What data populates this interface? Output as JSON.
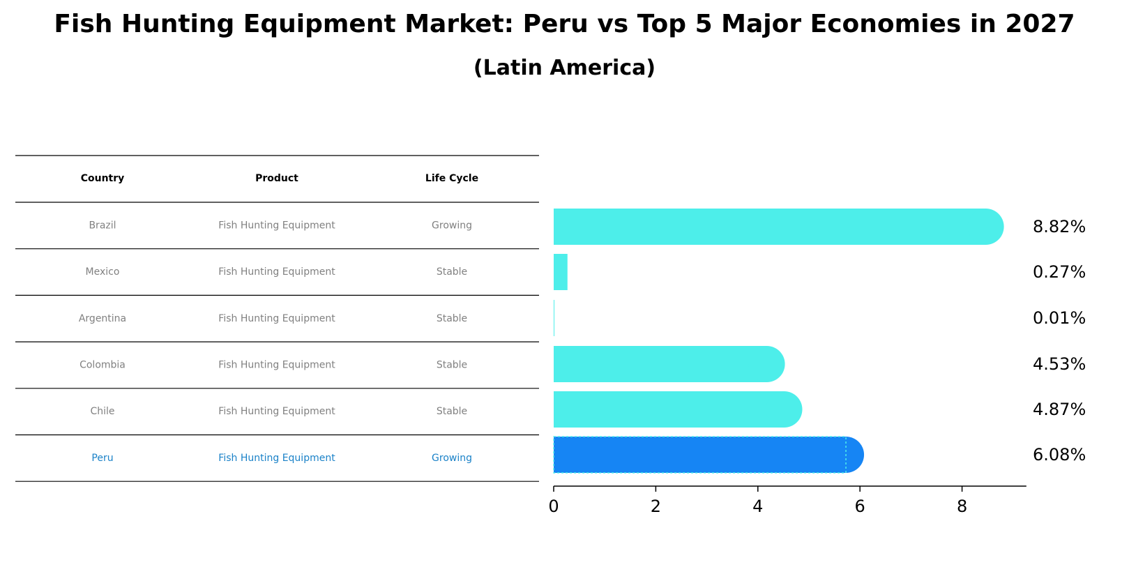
{
  "chart_data": {
    "type": "bar",
    "orientation": "horizontal",
    "title": "Fish Hunting Equipment Market: Peru vs Top 5 Major Economies in 2027",
    "subtitle": "(Latin America)",
    "table": {
      "headers": [
        "Country",
        "Product",
        "Life Cycle"
      ],
      "rows": [
        {
          "country": "Brazil",
          "product": "Fish Hunting Equipment",
          "life_cycle": "Growing",
          "highlight": false
        },
        {
          "country": "Mexico",
          "product": "Fish Hunting Equipment",
          "life_cycle": "Stable",
          "highlight": false
        },
        {
          "country": "Argentina",
          "product": "Fish Hunting Equipment",
          "life_cycle": "Stable",
          "highlight": false
        },
        {
          "country": "Colombia",
          "product": "Fish Hunting Equipment",
          "life_cycle": "Stable",
          "highlight": false
        },
        {
          "country": "Chile",
          "product": "Fish Hunting Equipment",
          "life_cycle": "Stable",
          "highlight": false
        },
        {
          "country": "Peru",
          "product": "Fish Hunting Equipment",
          "life_cycle": "Growing",
          "highlight": true
        }
      ]
    },
    "categories": [
      "Brazil",
      "Mexico",
      "Argentina",
      "Colombia",
      "Chile",
      "Peru"
    ],
    "values": [
      8.82,
      0.27,
      0.01,
      4.53,
      4.87,
      6.08
    ],
    "value_labels": [
      "8.82%",
      "0.27%",
      "0.01%",
      "4.53%",
      "4.87%",
      "6.08%"
    ],
    "xlim": [
      0,
      9.26
    ],
    "xticks": [
      "0",
      "2",
      "4",
      "6",
      "8"
    ],
    "colors": {
      "bar": "#4DEEEA",
      "highlight_bar": "#1685F4",
      "text_default": "#808080",
      "text_highlight": "#1B82C8",
      "header_text": "#000000",
      "rule": "#000000"
    }
  }
}
